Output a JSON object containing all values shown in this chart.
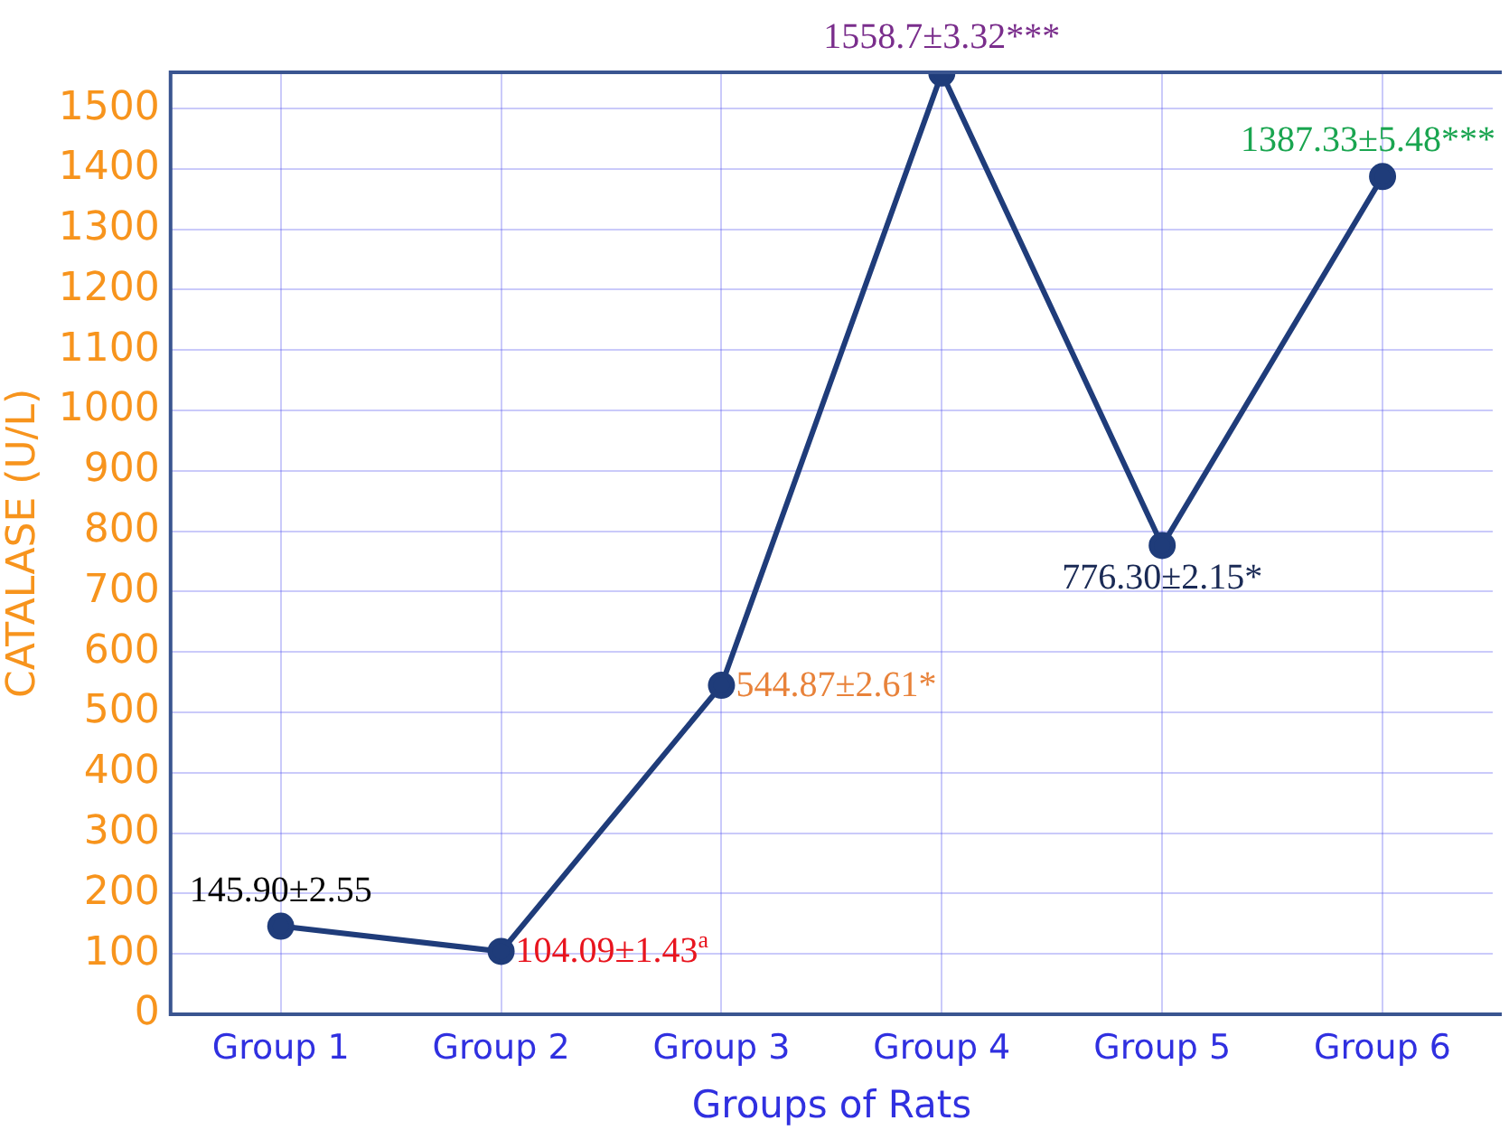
{
  "chart_data": {
    "type": "line",
    "xlabel": "Groups of Rats",
    "ylabel": "CATALASE (U/L)",
    "categories": [
      "Group 1",
      "Group 2",
      "Group 3",
      "Group 4",
      "Group 5",
      "Group 6"
    ],
    "series": [
      {
        "color": "#1f3c7a",
        "values": [
          145.9,
          104.09,
          544.87,
          1558.7,
          776.3,
          1387.33
        ],
        "value_labels": [
          "145.90±2.55",
          "104.09±1.43$^{a}$",
          "544.87±2.61*",
          "1558.7±3.32***",
          "776.30±2.15*",
          "1387.33±5.48***"
        ]
      }
    ],
    "ylim": [
      0,
      1560
    ],
    "yticks": [
      0,
      100,
      200,
      300,
      400,
      500,
      600,
      700,
      800,
      900,
      1000,
      1100,
      1200,
      1300,
      1400,
      1500
    ],
    "grid": true,
    "marker": "circle",
    "line_style": "solid",
    "legend": false
  }
}
